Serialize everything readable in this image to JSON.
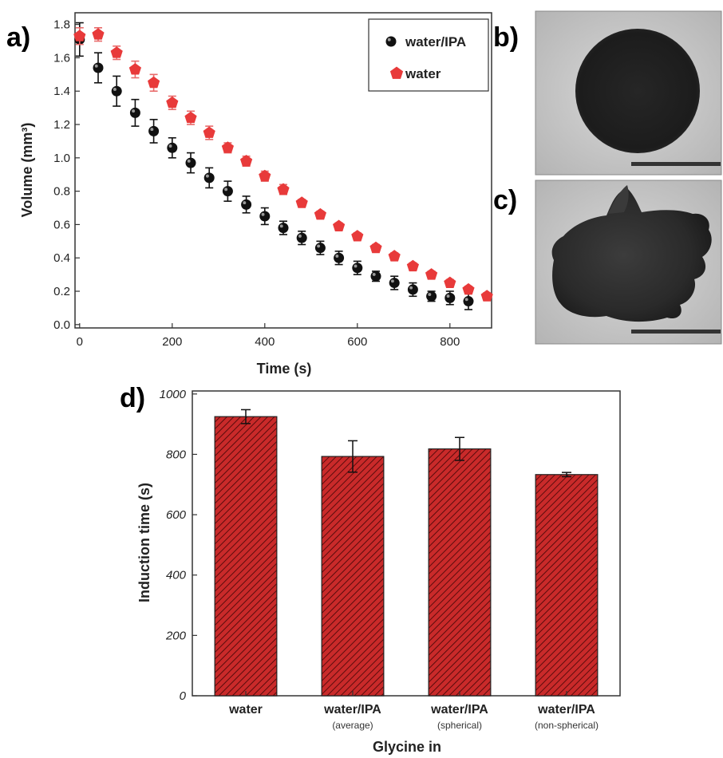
{
  "panel_labels": {
    "a": "a)",
    "b": "b)",
    "c": "c)",
    "d": "d)"
  },
  "colors": {
    "water": "#e83a3a",
    "water_ipa": "#111111",
    "bar_fill": "#c92a2a",
    "bar_hatch": "#5a0c0c"
  },
  "chart_data": [
    {
      "type": "scatter",
      "panel": "a",
      "xlabel": "Time (s)",
      "ylabel": "Volume (mm³)",
      "xlim": [
        -10,
        890
      ],
      "ylim": [
        -0.02,
        1.87
      ],
      "x_ticks": [
        0,
        200,
        400,
        600,
        800
      ],
      "y_ticks": [
        0.0,
        0.2,
        0.4,
        0.6,
        0.8,
        1.0,
        1.2,
        1.4,
        1.6,
        1.8
      ],
      "y_tick_labels": [
        "0.0",
        "0.2",
        "0.4",
        "0.6",
        "0.8",
        "1.0",
        "1.2",
        "1.4",
        "1.6",
        "1.8"
      ],
      "legend_position": "top-right",
      "series": [
        {
          "name": "water/IPA",
          "marker": "circle",
          "x": [
            0,
            40,
            80,
            120,
            160,
            200,
            240,
            280,
            320,
            360,
            400,
            440,
            480,
            520,
            560,
            600,
            640,
            680,
            720,
            760,
            800,
            840
          ],
          "y": [
            1.71,
            1.54,
            1.4,
            1.27,
            1.16,
            1.06,
            0.97,
            0.88,
            0.8,
            0.72,
            0.65,
            0.58,
            0.52,
            0.46,
            0.4,
            0.34,
            0.29,
            0.25,
            0.21,
            0.17,
            0.16,
            0.14
          ],
          "err": [
            0.1,
            0.09,
            0.09,
            0.08,
            0.07,
            0.06,
            0.06,
            0.06,
            0.06,
            0.05,
            0.05,
            0.04,
            0.04,
            0.04,
            0.04,
            0.04,
            0.03,
            0.04,
            0.04,
            0.03,
            0.04,
            0.05
          ]
        },
        {
          "name": "water",
          "marker": "pentagon",
          "x": [
            0,
            40,
            80,
            120,
            160,
            200,
            240,
            280,
            320,
            360,
            400,
            440,
            480,
            520,
            560,
            600,
            640,
            680,
            720,
            760,
            800,
            840,
            880
          ],
          "y": [
            1.73,
            1.74,
            1.63,
            1.53,
            1.45,
            1.33,
            1.24,
            1.15,
            1.06,
            0.98,
            0.89,
            0.81,
            0.73,
            0.66,
            0.59,
            0.53,
            0.46,
            0.41,
            0.35,
            0.3,
            0.25,
            0.21,
            0.17
          ],
          "err": [
            0.05,
            0.04,
            0.04,
            0.05,
            0.05,
            0.04,
            0.04,
            0.04,
            0.03,
            0.03,
            0.03,
            0.03,
            0.02,
            0.02,
            0.02,
            0.02,
            0.02,
            0.02,
            0.02,
            0.02,
            0.02,
            0.02,
            0.02
          ]
        }
      ]
    },
    {
      "type": "bar",
      "panel": "d",
      "xlabel": "Glycine in",
      "ylabel": "Induction time (s)",
      "ylim": [
        0,
        1010
      ],
      "y_ticks": [
        0,
        200,
        400,
        600,
        800,
        1000
      ],
      "categories": [
        {
          "label": "water",
          "sublabel": ""
        },
        {
          "label": "water/IPA",
          "sublabel": "(average)"
        },
        {
          "label": "water/IPA",
          "sublabel": "(spherical)"
        },
        {
          "label": "water/IPA",
          "sublabel": "(non-spherical)"
        }
      ],
      "values": [
        925,
        793,
        818,
        733
      ],
      "err": [
        23,
        52,
        38,
        7
      ]
    }
  ]
}
